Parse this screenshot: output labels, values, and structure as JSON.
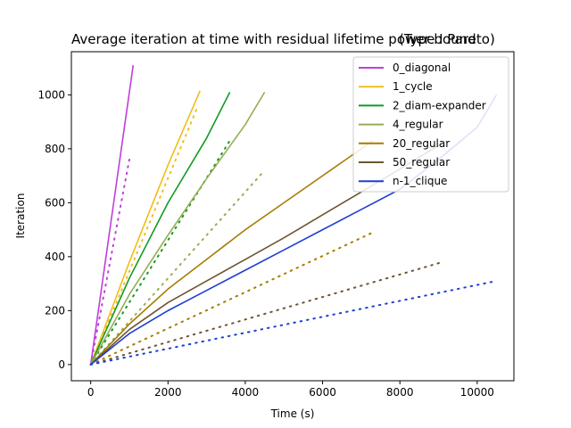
{
  "chart_data": {
    "type": "line",
    "title": "Average iteration at time with residual lifetime power bound",
    "title_overlay": "(Type I Pareto)",
    "xlabel": "Time (s)",
    "ylabel": "Iteration",
    "xlim": [
      -500,
      10950
    ],
    "ylim": [
      -60,
      1160
    ],
    "xticks": [
      0,
      2000,
      4000,
      6000,
      8000,
      10000
    ],
    "xtick_labels": [
      "0",
      "2000",
      "4000",
      "6000",
      "8000",
      "10000"
    ],
    "yticks": [
      0,
      200,
      400,
      600,
      800,
      1000
    ],
    "ytick_labels": [
      "0",
      "200",
      "400",
      "600",
      "800",
      "1000"
    ],
    "grid": false,
    "legend_position": "top-right",
    "series": [
      {
        "name": "0_diagonal",
        "color": "#bf3fd9",
        "solid": {
          "x": [
            0,
            1100
          ],
          "y": [
            0,
            1110
          ]
        },
        "dotted": {
          "x": [
            0,
            1000
          ],
          "y": [
            0,
            760
          ]
        }
      },
      {
        "name": "1_cycle",
        "color": "#f2bd1a",
        "solid": {
          "x": [
            0,
            1000,
            2000,
            2830
          ],
          "y": [
            0,
            380,
            740,
            1015
          ]
        },
        "dotted": {
          "x": [
            0,
            2750
          ],
          "y": [
            0,
            950
          ]
        }
      },
      {
        "name": "2_diam-expander",
        "color": "#119b22",
        "solid": {
          "x": [
            0,
            1000,
            2000,
            3000,
            3600
          ],
          "y": [
            0,
            320,
            600,
            840,
            1010
          ]
        },
        "dotted": {
          "x": [
            0,
            3600
          ],
          "y": [
            0,
            830
          ]
        }
      },
      {
        "name": "4_regular",
        "color": "#96ad55",
        "solid": {
          "x": [
            0,
            1000,
            2000,
            3000,
            4000,
            4500
          ],
          "y": [
            0,
            260,
            480,
            690,
            890,
            1010
          ]
        },
        "dotted": {
          "x": [
            0,
            4500
          ],
          "y": [
            0,
            720
          ]
        }
      },
      {
        "name": "20_regular",
        "color": "#a67c00",
        "solid": {
          "x": [
            0,
            1000,
            2000,
            3000,
            4000,
            5000,
            6000,
            7000,
            7300
          ],
          "y": [
            0,
            150,
            280,
            390,
            500,
            600,
            700,
            800,
            830
          ]
        },
        "dotted": {
          "x": [
            0,
            7300
          ],
          "y": [
            0,
            490
          ]
        }
      },
      {
        "name": "50_regular",
        "color": "#6e5430",
        "solid": {
          "x": [
            0,
            1000,
            2000,
            3000,
            4000,
            5000,
            6000,
            7000,
            8000,
            9200
          ],
          "y": [
            0,
            130,
            230,
            310,
            390,
            470,
            555,
            640,
            725,
            830
          ]
        },
        "dotted": {
          "x": [
            0,
            9100
          ],
          "y": [
            0,
            380
          ]
        }
      },
      {
        "name": "n-1_clique",
        "color": "#1f3fd4",
        "solid": {
          "x": [
            0,
            1000,
            2000,
            3000,
            4000,
            5000,
            6000,
            7000,
            8000,
            9000,
            10000,
            10500
          ],
          "y": [
            0,
            115,
            200,
            275,
            350,
            425,
            500,
            575,
            650,
            760,
            880,
            1000
          ]
        },
        "dotted": {
          "x": [
            0,
            10500
          ],
          "y": [
            0,
            310
          ]
        }
      }
    ]
  }
}
